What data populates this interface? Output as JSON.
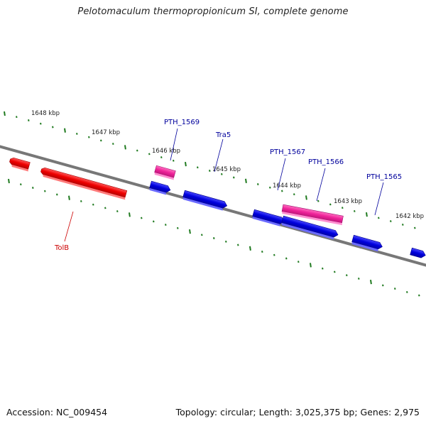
{
  "title": "Pelotomaculum thermopropionicum SI, complete genome",
  "footer": {
    "accession": "Accession: NC_009454",
    "summary": "Topology: circular; Length: 3,025,375 bp; Genes: 2,975"
  },
  "colors": {
    "backbone": "#777777",
    "ticks": "#1f7a1f",
    "forward_gene": "#0000dd",
    "reverse_gene": "#ee0000",
    "highlight_gene": "#ee2299",
    "label_forward": "#00009c",
    "label_reverse": "#cc0000"
  },
  "scale_labels": [
    "1648 kbp",
    "1647 kbp",
    "1646 kbp",
    "1645 kbp",
    "1644 kbp",
    "1643 kbp",
    "1642 kbp"
  ],
  "genes": [
    {
      "id": "gene-red-small",
      "type": "reverse"
    },
    {
      "id": "TolB",
      "label": "TolB",
      "type": "reverse"
    },
    {
      "id": "PTH_1569",
      "label": "PTH_1569",
      "type": "highlight"
    },
    {
      "id": "gene-blue-a",
      "type": "forward"
    },
    {
      "id": "Tra5",
      "label": "Tra5",
      "type": "forward"
    },
    {
      "id": "gene-blue-b",
      "type": "forward"
    },
    {
      "id": "PTH_1567",
      "label": "PTH_1567",
      "type": "forward"
    },
    {
      "id": "PTH_1566",
      "label": "PTH_1566",
      "type": "highlight"
    },
    {
      "id": "PTH_1565",
      "label": "PTH_1565",
      "type": "forward"
    },
    {
      "id": "gene-blue-edge",
      "type": "forward"
    }
  ]
}
